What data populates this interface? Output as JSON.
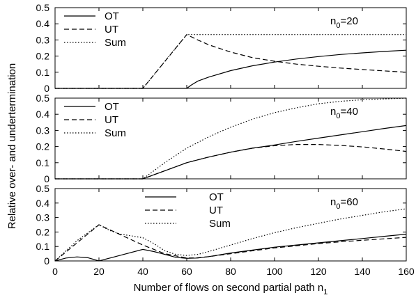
{
  "chart_data": [
    {
      "type": "line",
      "xlim": [
        0,
        160
      ],
      "ylim": [
        0,
        0.5
      ],
      "x_ticks": [
        "",
        "",
        "",
        "",
        "",
        "",
        "",
        "",
        ""
      ],
      "y_ticks": [
        "0",
        "0.1",
        "0.2",
        "0.3",
        "0.4",
        "0.5"
      ],
      "annotation": {
        "base": "n",
        "sub": "0",
        "rest": "=20"
      },
      "legend_position": "top-left",
      "grid": false,
      "series": [
        {
          "name": "OT",
          "style": "solid",
          "points": [
            [
              0,
              0
            ],
            [
              60,
              0
            ],
            [
              62,
              0.02
            ],
            [
              65,
              0.045
            ],
            [
              70,
              0.07
            ],
            [
              80,
              0.11
            ],
            [
              90,
              0.14
            ],
            [
              100,
              0.163
            ],
            [
              110,
              0.182
            ],
            [
              120,
              0.197
            ],
            [
              130,
              0.21
            ],
            [
              140,
              0.22
            ],
            [
              150,
              0.229
            ],
            [
              160,
              0.236
            ]
          ]
        },
        {
          "name": "UT",
          "style": "dashed",
          "points": [
            [
              0,
              0
            ],
            [
              40,
              0
            ],
            [
              60,
              0.333
            ],
            [
              65,
              0.3
            ],
            [
              70,
              0.27
            ],
            [
              80,
              0.225
            ],
            [
              90,
              0.19
            ],
            [
              100,
              0.168
            ],
            [
              110,
              0.15
            ],
            [
              120,
              0.137
            ],
            [
              130,
              0.126
            ],
            [
              140,
              0.117
            ],
            [
              150,
              0.108
            ],
            [
              160,
              0.1
            ]
          ]
        },
        {
          "name": "Sum",
          "style": "dotted",
          "points": [
            [
              0,
              0
            ],
            [
              40,
              0
            ],
            [
              60,
              0.333
            ],
            [
              160,
              0.333
            ]
          ]
        }
      ]
    },
    {
      "type": "line",
      "xlim": [
        0,
        160
      ],
      "ylim": [
        0,
        0.5
      ],
      "x_ticks": [
        "",
        "",
        "",
        "",
        "",
        "",
        "",
        "",
        ""
      ],
      "y_ticks": [
        "0",
        "0.1",
        "0.2",
        "0.3",
        "0.4",
        "0.5"
      ],
      "annotation": {
        "base": "n",
        "sub": "0",
        "rest": "=40"
      },
      "legend_position": "top-left",
      "grid": false,
      "series": [
        {
          "name": "OT",
          "style": "solid",
          "points": [
            [
              0,
              0
            ],
            [
              40,
              0
            ],
            [
              50,
              0.05
            ],
            [
              60,
              0.1
            ],
            [
              70,
              0.135
            ],
            [
              80,
              0.165
            ],
            [
              90,
              0.19
            ],
            [
              100,
              0.21
            ],
            [
              110,
              0.232
            ],
            [
              120,
              0.252
            ],
            [
              130,
              0.272
            ],
            [
              140,
              0.292
            ],
            [
              150,
              0.312
            ],
            [
              160,
              0.33
            ]
          ]
        },
        {
          "name": "UT",
          "style": "dashed",
          "points": [
            [
              0,
              0
            ],
            [
              40,
              0
            ],
            [
              50,
              0.05
            ],
            [
              60,
              0.1
            ],
            [
              70,
              0.135
            ],
            [
              80,
              0.165
            ],
            [
              90,
              0.19
            ],
            [
              100,
              0.205
            ],
            [
              110,
              0.213
            ],
            [
              120,
              0.213
            ],
            [
              130,
              0.207
            ],
            [
              140,
              0.198
            ],
            [
              150,
              0.185
            ],
            [
              160,
              0.17
            ]
          ]
        },
        {
          "name": "Sum",
          "style": "dotted",
          "points": [
            [
              0,
              0
            ],
            [
              40,
              0
            ],
            [
              45,
              0.05
            ],
            [
              50,
              0.1
            ],
            [
              60,
              0.19
            ],
            [
              70,
              0.26
            ],
            [
              80,
              0.32
            ],
            [
              90,
              0.37
            ],
            [
              100,
              0.41
            ],
            [
              110,
              0.44
            ],
            [
              120,
              0.465
            ],
            [
              130,
              0.48
            ],
            [
              140,
              0.49
            ],
            [
              150,
              0.495
            ],
            [
              160,
              0.5
            ]
          ]
        }
      ]
    },
    {
      "type": "line",
      "xlim": [
        0,
        160
      ],
      "ylim": [
        0,
        0.5
      ],
      "x_ticks": [
        "0",
        "20",
        "40",
        "60",
        "80",
        "100",
        "120",
        "140",
        "160"
      ],
      "y_ticks": [
        "0",
        "0.1",
        "0.2",
        "0.3",
        "0.4",
        "0.5"
      ],
      "xlabel": {
        "base": "Number of flows on second partial path n",
        "sub": "1"
      },
      "annotation": {
        "base": "n",
        "sub": "0",
        "rest": "=60"
      },
      "legend_position": "top-center",
      "grid": false,
      "series": [
        {
          "name": "OT",
          "style": "solid",
          "points": [
            [
              0,
              0
            ],
            [
              5,
              0.02
            ],
            [
              10,
              0.028
            ],
            [
              15,
              0.022
            ],
            [
              20,
              0
            ],
            [
              30,
              0.04
            ],
            [
              40,
              0.08
            ],
            [
              45,
              0.065
            ],
            [
              50,
              0.045
            ],
            [
              55,
              0.025
            ],
            [
              60,
              0.018
            ],
            [
              65,
              0.02
            ],
            [
              70,
              0.03
            ],
            [
              80,
              0.055
            ],
            [
              90,
              0.075
            ],
            [
              100,
              0.095
            ],
            [
              110,
              0.11
            ],
            [
              120,
              0.125
            ],
            [
              130,
              0.14
            ],
            [
              140,
              0.155
            ],
            [
              150,
              0.17
            ],
            [
              160,
              0.185
            ]
          ]
        },
        {
          "name": "UT",
          "style": "dashed",
          "points": [
            [
              0,
              0
            ],
            [
              10,
              0.125
            ],
            [
              20,
              0.25
            ],
            [
              30,
              0.18
            ],
            [
              40,
              0.11
            ],
            [
              50,
              0.05
            ],
            [
              60,
              0.02
            ],
            [
              65,
              0.022
            ],
            [
              70,
              0.03
            ],
            [
              80,
              0.05
            ],
            [
              90,
              0.07
            ],
            [
              100,
              0.09
            ],
            [
              110,
              0.105
            ],
            [
              120,
              0.12
            ],
            [
              130,
              0.132
            ],
            [
              140,
              0.143
            ],
            [
              150,
              0.153
            ],
            [
              160,
              0.163
            ]
          ]
        },
        {
          "name": "Sum",
          "style": "dotted",
          "points": [
            [
              0,
              0
            ],
            [
              10,
              0.14
            ],
            [
              20,
              0.25
            ],
            [
              25,
              0.21
            ],
            [
              30,
              0.185
            ],
            [
              40,
              0.16
            ],
            [
              45,
              0.12
            ],
            [
              50,
              0.07
            ],
            [
              55,
              0.045
            ],
            [
              60,
              0.038
            ],
            [
              65,
              0.045
            ],
            [
              70,
              0.065
            ],
            [
              80,
              0.11
            ],
            [
              90,
              0.155
            ],
            [
              100,
              0.195
            ],
            [
              110,
              0.23
            ],
            [
              120,
              0.26
            ],
            [
              130,
              0.29
            ],
            [
              140,
              0.315
            ],
            [
              150,
              0.34
            ],
            [
              160,
              0.36
            ]
          ]
        }
      ]
    }
  ],
  "ylabel": "Relative over- and undertermination"
}
